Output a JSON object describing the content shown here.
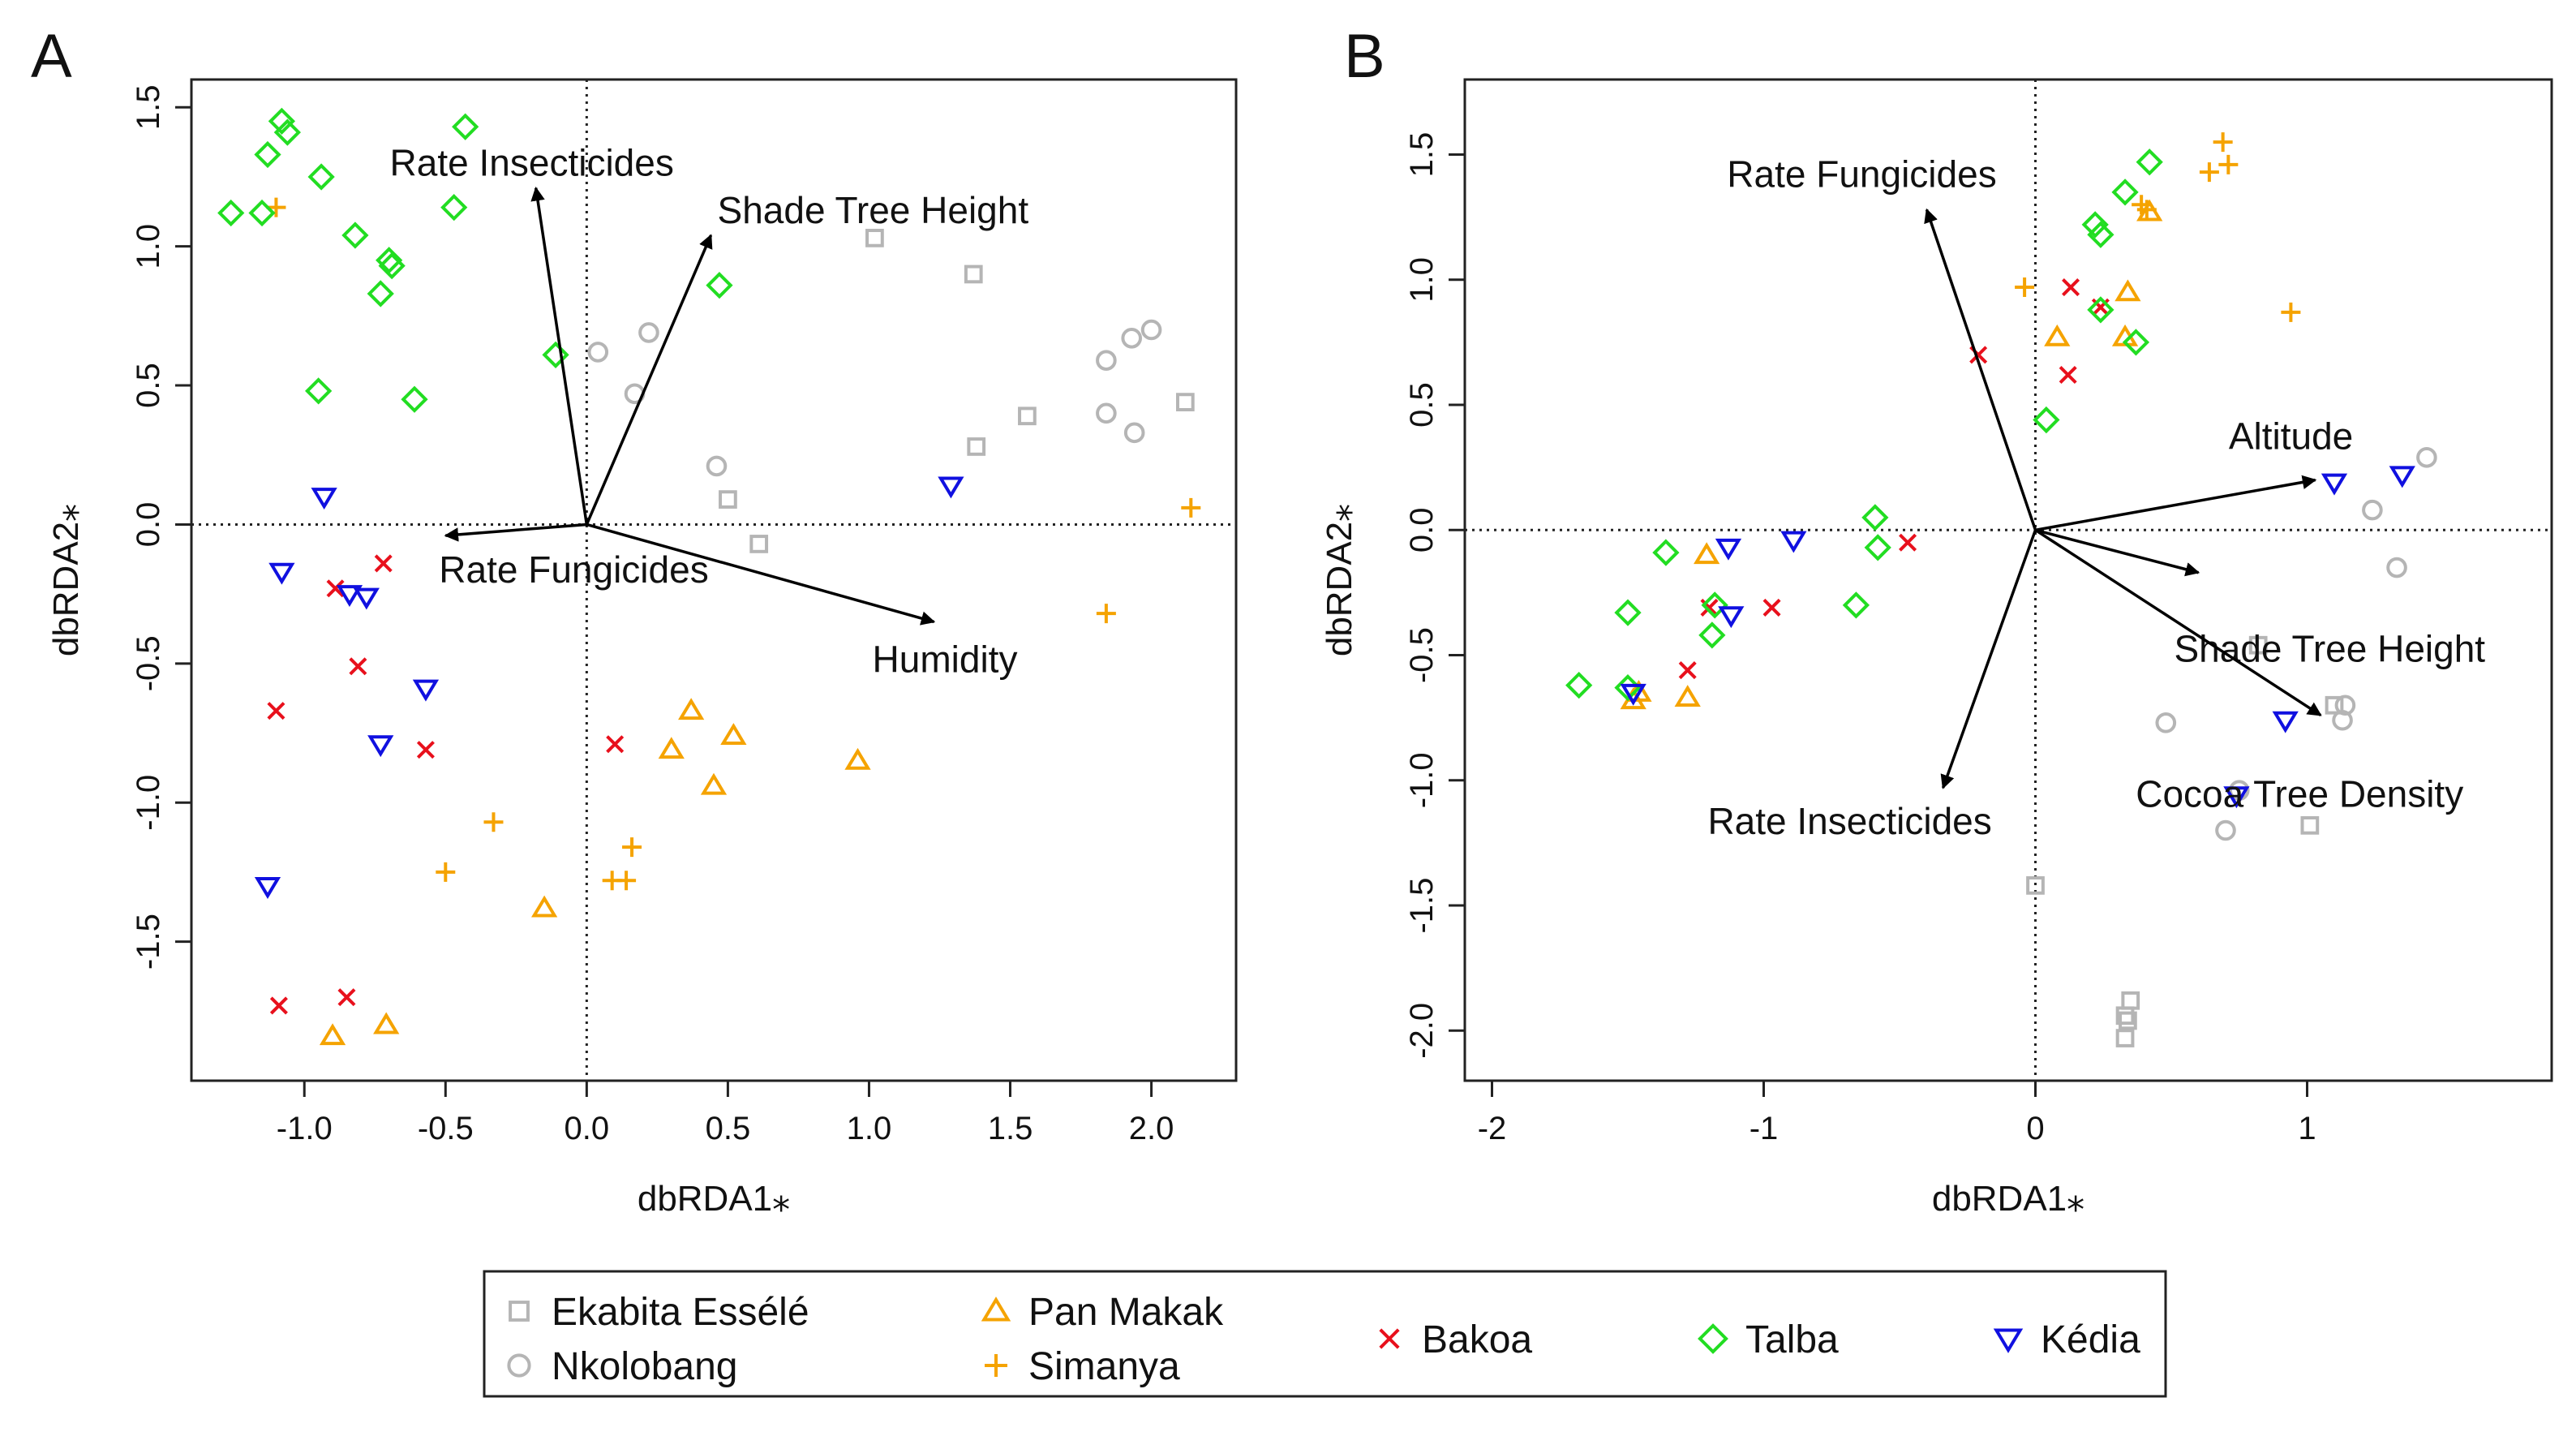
{
  "panels": [
    {
      "letter": "A",
      "chart_data": {
        "type": "scatter",
        "xlabel": "dbRDA1⁎",
        "ylabel": "dbRDA2⁎",
        "xlim": [
          -1.4,
          2.3
        ],
        "ylim": [
          -2.0,
          1.6
        ],
        "xticks": [
          -1.0,
          -0.5,
          0.0,
          0.5,
          1.0,
          1.5,
          2.0
        ],
        "xtick_labels": [
          "-1.0",
          "-0.5",
          "0.0",
          "0.5",
          "1.0",
          "1.5",
          "2.0"
        ],
        "yticks": [
          -1.5,
          -1.0,
          -0.5,
          0.0,
          0.5,
          1.0,
          1.5
        ],
        "ytick_labels": [
          "-1.5",
          "-1.0",
          "-0.5",
          "0.0",
          "0.5",
          "1.0",
          "1.5"
        ],
        "vectors": [
          {
            "label": "Rate Insecticides",
            "x": -0.18,
            "y": 1.21
          },
          {
            "label": "Shade Tree Height",
            "x": 0.44,
            "y": 1.04
          },
          {
            "label": "Rate Fungicides",
            "x": -0.5,
            "y": -0.04
          },
          {
            "label": "Humidity",
            "x": 1.23,
            "y": -0.35
          }
        ],
        "series": [
          {
            "name": "Ekabita Essélé",
            "points": [
              [
                1.02,
                1.03
              ],
              [
                1.37,
                0.9
              ],
              [
                1.56,
                0.39
              ],
              [
                1.38,
                0.28
              ],
              [
                2.12,
                0.44
              ],
              [
                0.5,
                0.09
              ],
              [
                0.61,
                -0.07
              ]
            ]
          },
          {
            "name": "Nkolobang",
            "points": [
              [
                0.04,
                0.62
              ],
              [
                0.22,
                0.69
              ],
              [
                0.17,
                0.47
              ],
              [
                0.46,
                0.21
              ],
              [
                1.84,
                0.59
              ],
              [
                1.93,
                0.67
              ],
              [
                2.0,
                0.7
              ],
              [
                1.84,
                0.4
              ],
              [
                1.94,
                0.33
              ]
            ]
          },
          {
            "name": "Pan Makak",
            "points": [
              [
                0.37,
                -0.67
              ],
              [
                0.52,
                -0.76
              ],
              [
                0.3,
                -0.81
              ],
              [
                0.45,
                -0.94
              ],
              [
                0.96,
                -0.85
              ],
              [
                -0.15,
                -1.38
              ],
              [
                -0.71,
                -1.8
              ],
              [
                -0.9,
                -1.84
              ]
            ]
          },
          {
            "name": "Simanya",
            "points": [
              [
                -1.1,
                1.14
              ],
              [
                -0.33,
                -1.07
              ],
              [
                -0.5,
                -1.25
              ],
              [
                0.16,
                -1.16
              ],
              [
                0.09,
                -1.28
              ],
              [
                0.14,
                -1.28
              ],
              [
                1.84,
                -0.32
              ],
              [
                2.14,
                0.06
              ]
            ]
          },
          {
            "name": "Bakoa",
            "points": [
              [
                -0.72,
                -0.14
              ],
              [
                -0.89,
                -0.23
              ],
              [
                -0.81,
                -0.51
              ],
              [
                -1.1,
                -0.67
              ],
              [
                -0.57,
                -0.81
              ],
              [
                0.1,
                -0.79
              ],
              [
                -0.85,
                -1.7
              ],
              [
                -1.09,
                -1.73
              ]
            ]
          },
          {
            "name": "Talba",
            "points": [
              [
                -1.08,
                1.45
              ],
              [
                -1.06,
                1.41
              ],
              [
                -1.13,
                1.33
              ],
              [
                -0.43,
                1.43
              ],
              [
                -0.94,
                1.25
              ],
              [
                -1.26,
                1.12
              ],
              [
                -1.15,
                1.12
              ],
              [
                -0.47,
                1.14
              ],
              [
                -0.82,
                1.04
              ],
              [
                -0.7,
                0.95
              ],
              [
                -0.69,
                0.93
              ],
              [
                -0.73,
                0.83
              ],
              [
                0.47,
                0.86
              ],
              [
                -0.11,
                0.61
              ],
              [
                -0.95,
                0.48
              ],
              [
                -0.61,
                0.45
              ]
            ]
          },
          {
            "name": "Kédia",
            "points": [
              [
                -0.93,
                0.1
              ],
              [
                1.29,
                0.14
              ],
              [
                -1.08,
                -0.17
              ],
              [
                -0.84,
                -0.25
              ],
              [
                -0.78,
                -0.26
              ],
              [
                -0.57,
                -0.59
              ],
              [
                -0.73,
                -0.79
              ],
              [
                -1.13,
                -1.3
              ]
            ]
          }
        ]
      }
    },
    {
      "letter": "B",
      "chart_data": {
        "type": "scatter",
        "xlabel": "dbRDA1⁎",
        "ylabel": "dbRDA2⁎",
        "xlim": [
          -2.1,
          1.9
        ],
        "ylim": [
          -2.2,
          1.8
        ],
        "xticks": [
          -2,
          -1,
          0,
          1
        ],
        "xtick_labels": [
          "-2",
          "-1",
          "0",
          "1"
        ],
        "yticks": [
          -2.0,
          -1.5,
          -1.0,
          -0.5,
          0.0,
          0.5,
          1.0,
          1.5
        ],
        "ytick_labels": [
          "-2.0",
          "-1.5",
          "-1.0",
          "-0.5",
          "0.0",
          "0.5",
          "1.0",
          "1.5"
        ],
        "vectors": [
          {
            "label": "Rate Fungicides",
            "x": -0.4,
            "y": 1.28
          },
          {
            "label": "Altitude",
            "x": 1.03,
            "y": 0.2
          },
          {
            "label": "Shade Tree Height",
            "x": 0.6,
            "y": -0.17
          },
          {
            "label": "Cocoa Tree Density",
            "x": 1.05,
            "y": -0.74
          },
          {
            "label": "Rate Insecticides",
            "x": -0.34,
            "y": -1.03
          }
        ],
        "series": [
          {
            "name": "Ekabita Essélé",
            "points": [
              [
                0.82,
                -0.46
              ],
              [
                1.1,
                -0.7
              ],
              [
                1.01,
                -1.18
              ],
              [
                0.0,
                -1.42
              ],
              [
                0.35,
                -1.88
              ],
              [
                0.33,
                -1.94
              ],
              [
                0.34,
                -1.96
              ],
              [
                0.33,
                -2.03
              ]
            ]
          },
          {
            "name": "Nkolobang",
            "points": [
              [
                1.44,
                0.29
              ],
              [
                1.24,
                0.08
              ],
              [
                1.33,
                -0.15
              ],
              [
                1.14,
                -0.7
              ],
              [
                1.13,
                -0.76
              ],
              [
                0.48,
                -0.77
              ],
              [
                0.75,
                -1.04
              ],
              [
                0.7,
                -1.2
              ]
            ]
          },
          {
            "name": "Pan Makak",
            "points": [
              [
                0.42,
                1.27
              ],
              [
                0.34,
                0.95
              ],
              [
                0.08,
                0.77
              ],
              [
                0.33,
                0.77
              ],
              [
                -1.21,
                -0.1
              ],
              [
                -1.46,
                -0.65
              ],
              [
                -1.48,
                -0.68
              ],
              [
                -1.28,
                -0.67
              ]
            ]
          },
          {
            "name": "Simanya",
            "points": [
              [
                0.69,
                1.55
              ],
              [
                0.71,
                1.46
              ],
              [
                0.64,
                1.43
              ],
              [
                0.41,
                1.28
              ],
              [
                0.39,
                1.3
              ],
              [
                -0.04,
                0.97
              ],
              [
                0.94,
                0.87
              ]
            ]
          },
          {
            "name": "Bakoa",
            "points": [
              [
                -0.21,
                0.7
              ],
              [
                0.13,
                0.97
              ],
              [
                0.24,
                0.89
              ],
              [
                0.12,
                0.62
              ],
              [
                -0.47,
                -0.05
              ],
              [
                -0.97,
                -0.31
              ],
              [
                -1.2,
                -0.31
              ],
              [
                -1.28,
                -0.56
              ]
            ]
          },
          {
            "name": "Talba",
            "points": [
              [
                0.42,
                1.47
              ],
              [
                0.33,
                1.35
              ],
              [
                0.22,
                1.22
              ],
              [
                0.24,
                1.18
              ],
              [
                0.24,
                0.88
              ],
              [
                0.37,
                0.75
              ],
              [
                0.04,
                0.44
              ],
              [
                -0.59,
                0.05
              ],
              [
                -0.58,
                -0.07
              ],
              [
                -1.36,
                -0.09
              ],
              [
                -0.66,
                -0.3
              ],
              [
                -1.18,
                -0.3
              ],
              [
                -1.5,
                -0.33
              ],
              [
                -1.19,
                -0.42
              ],
              [
                -1.5,
                -0.63
              ],
              [
                -1.68,
                -0.62
              ]
            ]
          },
          {
            "name": "Kédia",
            "points": [
              [
                1.1,
                0.19
              ],
              [
                1.35,
                0.22
              ],
              [
                -1.13,
                -0.07
              ],
              [
                -0.89,
                -0.04
              ],
              [
                -1.12,
                -0.34
              ],
              [
                -1.48,
                -0.65
              ],
              [
                0.92,
                -0.76
              ],
              [
                0.74,
                -1.06
              ]
            ]
          }
        ]
      }
    }
  ],
  "legend": {
    "entries": [
      {
        "label": "Ekabita Essélé",
        "symbol": "square",
        "color": "#b5b5b5"
      },
      {
        "label": "Nkolobang",
        "symbol": "circle",
        "color": "#b5b5b5"
      },
      {
        "label": "Pan Makak",
        "symbol": "triangle",
        "color": "#f5a300"
      },
      {
        "label": "Simanya",
        "symbol": "plus",
        "color": "#f5a300"
      },
      {
        "label": "Bakoa",
        "symbol": "cross",
        "color": "#e8101c"
      },
      {
        "label": "Talba",
        "symbol": "diamond",
        "color": "#22dd22"
      },
      {
        "label": "Kédia",
        "symbol": "triangle-down",
        "color": "#1010e0"
      }
    ]
  }
}
